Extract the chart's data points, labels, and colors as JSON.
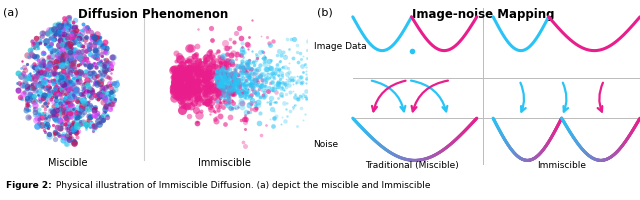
{
  "title_a": "Diffusion Phenomenon",
  "title_b": "Image-noise Mapping",
  "label_a": "(a)",
  "label_b": "(b)",
  "label_miscible": "Miscible",
  "label_immiscible": "Immiscible",
  "label_traditional": "Traditional (Miscible)",
  "label_immiscible2": "Immiscible",
  "label_image_data": "Image Data",
  "label_noise": "Noise",
  "color_cyan": "#29C4F5",
  "color_magenta": "#E91E8C",
  "fig_width": 6.4,
  "fig_height": 2.01,
  "caption_bold": "Figure 2:",
  "caption_rest": " Physical illustration of Immiscible Diffusion. (a) depict the miscible and Immiscible"
}
